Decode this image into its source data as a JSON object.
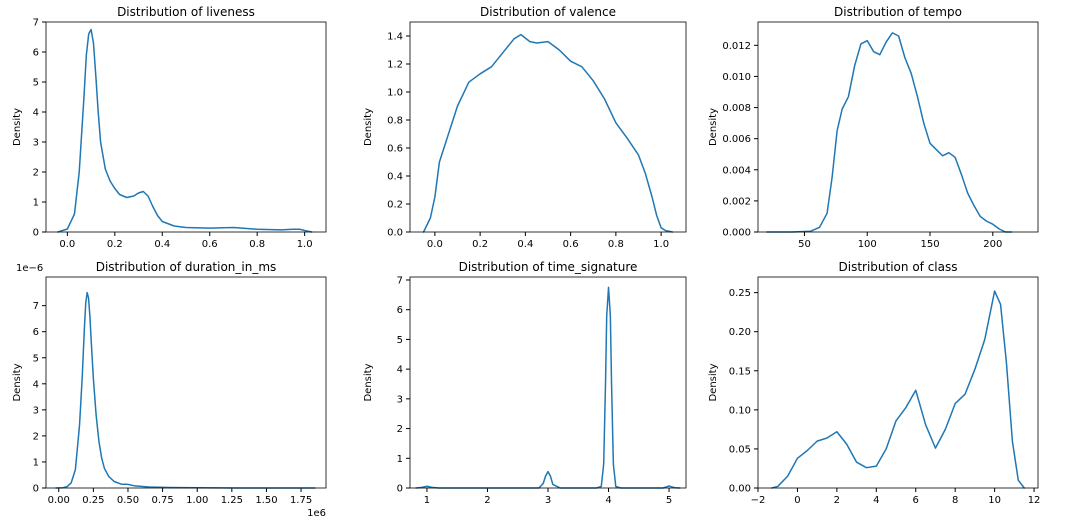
{
  "figure": {
    "line_color": "#1f77b4",
    "background": "#ffffff"
  },
  "chart_data": [
    {
      "type": "line",
      "title": "Distribution of liveness",
      "xlabel": "",
      "ylabel": "Density",
      "xlim": [
        -0.09,
        1.09
      ],
      "ylim": [
        0,
        7
      ],
      "xticks": [
        0.0,
        0.2,
        0.4,
        0.6,
        0.8,
        1.0
      ],
      "xtick_labels": [
        "0.0",
        "0.2",
        "0.4",
        "0.6",
        "0.8",
        "1.0"
      ],
      "yticks": [
        0,
        1,
        2,
        3,
        4,
        5,
        6,
        7
      ],
      "ytick_labels": [
        "0",
        "1",
        "2",
        "3",
        "4",
        "5",
        "6",
        "7"
      ],
      "offset_label": "",
      "series": [
        {
          "x": [
            -0.04,
            0.0,
            0.03,
            0.05,
            0.07,
            0.08,
            0.09,
            0.1,
            0.11,
            0.12,
            0.13,
            0.14,
            0.16,
            0.18,
            0.2,
            0.22,
            0.25,
            0.28,
            0.3,
            0.32,
            0.34,
            0.36,
            0.38,
            0.4,
            0.45,
            0.5,
            0.6,
            0.7,
            0.8,
            0.9,
            0.95,
            0.98,
            1.0,
            1.03
          ],
          "y": [
            0.0,
            0.1,
            0.6,
            2.0,
            4.5,
            5.9,
            6.6,
            6.75,
            6.3,
            5.2,
            4.0,
            3.0,
            2.1,
            1.7,
            1.45,
            1.25,
            1.15,
            1.2,
            1.3,
            1.35,
            1.2,
            0.85,
            0.55,
            0.35,
            0.2,
            0.15,
            0.13,
            0.15,
            0.09,
            0.07,
            0.09,
            0.09,
            0.05,
            0.0
          ]
        }
      ]
    },
    {
      "type": "line",
      "title": "Distribution of valence",
      "xlabel": "",
      "ylabel": "Density",
      "xlim": [
        -0.11,
        1.11
      ],
      "ylim": [
        0,
        1.5
      ],
      "xticks": [
        0.0,
        0.2,
        0.4,
        0.6,
        0.8,
        1.0
      ],
      "xtick_labels": [
        "0.0",
        "0.2",
        "0.4",
        "0.6",
        "0.8",
        "1.0"
      ],
      "yticks": [
        0.0,
        0.2,
        0.4,
        0.6,
        0.8,
        1.0,
        1.2,
        1.4
      ],
      "ytick_labels": [
        "0.0",
        "0.2",
        "0.4",
        "0.6",
        "0.8",
        "1.0",
        "1.2",
        "1.4"
      ],
      "offset_label": "",
      "series": [
        {
          "x": [
            -0.05,
            -0.02,
            0.0,
            0.02,
            0.05,
            0.1,
            0.15,
            0.2,
            0.25,
            0.3,
            0.35,
            0.38,
            0.42,
            0.45,
            0.5,
            0.55,
            0.6,
            0.65,
            0.7,
            0.75,
            0.8,
            0.85,
            0.9,
            0.93,
            0.96,
            0.98,
            1.0,
            1.02,
            1.05
          ],
          "y": [
            0.0,
            0.1,
            0.25,
            0.5,
            0.65,
            0.9,
            1.07,
            1.13,
            1.18,
            1.28,
            1.38,
            1.41,
            1.36,
            1.35,
            1.36,
            1.3,
            1.22,
            1.18,
            1.08,
            0.95,
            0.78,
            0.67,
            0.55,
            0.42,
            0.25,
            0.12,
            0.03,
            0.01,
            0.0
          ]
        }
      ]
    },
    {
      "type": "line",
      "title": "Distribution of tempo",
      "xlabel": "",
      "ylabel": "Density",
      "xlim": [
        13,
        236
      ],
      "ylim": [
        0,
        0.0135
      ],
      "xticks": [
        50,
        100,
        150,
        200
      ],
      "xtick_labels": [
        "50",
        "100",
        "150",
        "200"
      ],
      "yticks": [
        0.0,
        0.002,
        0.004,
        0.006,
        0.008,
        0.01,
        0.012
      ],
      "ytick_labels": [
        "0.000",
        "0.002",
        "0.004",
        "0.006",
        "0.008",
        "0.010",
        "0.012"
      ],
      "offset_label": "",
      "series": [
        {
          "x": [
            20,
            40,
            55,
            62,
            68,
            72,
            76,
            80,
            85,
            90,
            95,
            100,
            105,
            110,
            115,
            120,
            125,
            130,
            135,
            140,
            145,
            150,
            155,
            160,
            165,
            170,
            175,
            180,
            185,
            190,
            195,
            200,
            205,
            210,
            215
          ],
          "y": [
            0.0,
            0.0,
            5e-05,
            0.0003,
            0.0012,
            0.0035,
            0.0065,
            0.0079,
            0.0087,
            0.0107,
            0.0121,
            0.0123,
            0.0116,
            0.0114,
            0.0122,
            0.0128,
            0.0126,
            0.0112,
            0.0102,
            0.0087,
            0.007,
            0.0057,
            0.0053,
            0.0049,
            0.0051,
            0.0048,
            0.0037,
            0.0025,
            0.0017,
            0.001,
            0.0007,
            0.0005,
            0.0002,
            0.0,
            0.0
          ]
        }
      ]
    },
    {
      "type": "line",
      "title": "Distribution of duration_in_ms",
      "xlabel": "",
      "ylabel": "Density",
      "xlim": [
        -92000,
        1930000
      ],
      "ylim": [
        0,
        8.1e-06
      ],
      "xticks": [
        0,
        250000,
        500000,
        750000,
        1000000,
        1250000,
        1500000,
        1750000
      ],
      "xtick_labels": [
        "0.00",
        "0.25",
        "0.50",
        "0.75",
        "1.00",
        "1.25",
        "1.50",
        "1.75"
      ],
      "yticks": [
        0,
        1e-06,
        2e-06,
        3e-06,
        4e-06,
        5e-06,
        6e-06,
        7e-06
      ],
      "ytick_labels": [
        "0",
        "1",
        "2",
        "3",
        "4",
        "5",
        "6",
        "7"
      ],
      "offset_label": "1e−6",
      "x_offset_label": "1e6",
      "series": [
        {
          "x": [
            -20000,
            30000,
            60000,
            90000,
            120000,
            150000,
            170000,
            185000,
            195000,
            205000,
            215000,
            225000,
            235000,
            250000,
            270000,
            290000,
            310000,
            330000,
            360000,
            400000,
            450000,
            500000,
            550000,
            650000,
            800000,
            1000000,
            1300000,
            1600000,
            1850000
          ],
          "y": [
            0.0,
            1e-08,
            5e-08,
            2e-07,
            7e-07,
            2.4e-06,
            4.3e-06,
            6.1e-06,
            7.1e-06,
            7.5e-06,
            7.3e-06,
            6.6e-06,
            5.6e-06,
            4.2e-06,
            2.8e-06,
            1.8e-06,
            1.15e-06,
            7.5e-07,
            4.5e-07,
            2.5e-07,
            1.5e-07,
            1.4e-07,
            8e-08,
            4e-08,
            2e-08,
            1e-08,
            0.0,
            0.0,
            0.0
          ]
        }
      ]
    },
    {
      "type": "line",
      "title": "Distribution of time_signature",
      "xlabel": "",
      "ylabel": "Density",
      "xlim": [
        0.72,
        5.28
      ],
      "ylim": [
        0,
        7.1
      ],
      "xticks": [
        1,
        2,
        3,
        4,
        5
      ],
      "xtick_labels": [
        "1",
        "2",
        "3",
        "4",
        "5"
      ],
      "yticks": [
        0,
        1,
        2,
        3,
        4,
        5,
        6,
        7
      ],
      "ytick_labels": [
        "0",
        "1",
        "2",
        "3",
        "4",
        "5",
        "6",
        "7"
      ],
      "offset_label": "",
      "series": [
        {
          "x": [
            0.82,
            0.92,
            1.0,
            1.08,
            1.2,
            2.0,
            2.85,
            2.92,
            2.96,
            3.0,
            3.04,
            3.08,
            3.2,
            3.8,
            3.88,
            3.92,
            3.95,
            3.97,
            4.0,
            4.03,
            4.05,
            4.08,
            4.12,
            4.2,
            4.9,
            4.96,
            5.0,
            5.04,
            5.1,
            5.18
          ],
          "y": [
            0.0,
            0.02,
            0.06,
            0.02,
            0.0,
            0.0,
            0.0,
            0.15,
            0.4,
            0.55,
            0.4,
            0.12,
            0.0,
            0.0,
            0.05,
            0.8,
            3.5,
            5.8,
            6.75,
            5.8,
            3.5,
            0.8,
            0.05,
            0.0,
            0.0,
            0.04,
            0.07,
            0.04,
            0.01,
            0.0
          ]
        }
      ]
    },
    {
      "type": "line",
      "title": "Distribution of class",
      "xlabel": "",
      "ylabel": "Density",
      "xlim": [
        -2,
        12.2
      ],
      "ylim": [
        0,
        0.27
      ],
      "xticks": [
        -2,
        0,
        2,
        4,
        6,
        8,
        10,
        12
      ],
      "xtick_labels": [
        "−2",
        "0",
        "2",
        "4",
        "6",
        "8",
        "10",
        "12"
      ],
      "yticks": [
        0.0,
        0.05,
        0.1,
        0.15,
        0.2,
        0.25
      ],
      "ytick_labels": [
        "0.00",
        "0.05",
        "0.10",
        "0.15",
        "0.20",
        "0.25"
      ],
      "offset_label": "",
      "series": [
        {
          "x": [
            -1.3,
            -1.0,
            -0.5,
            0.0,
            0.5,
            1.0,
            1.5,
            2.0,
            2.5,
            3.0,
            3.5,
            4.0,
            4.5,
            5.0,
            5.5,
            6.0,
            6.5,
            7.0,
            7.5,
            8.0,
            8.5,
            9.0,
            9.5,
            10.0,
            10.3,
            10.6,
            10.9,
            11.2,
            11.5
          ],
          "y": [
            0.0,
            0.002,
            0.015,
            0.038,
            0.048,
            0.06,
            0.064,
            0.072,
            0.056,
            0.033,
            0.026,
            0.028,
            0.05,
            0.086,
            0.103,
            0.125,
            0.081,
            0.051,
            0.075,
            0.108,
            0.12,
            0.152,
            0.19,
            0.252,
            0.235,
            0.16,
            0.06,
            0.01,
            0.0
          ]
        }
      ]
    }
  ]
}
